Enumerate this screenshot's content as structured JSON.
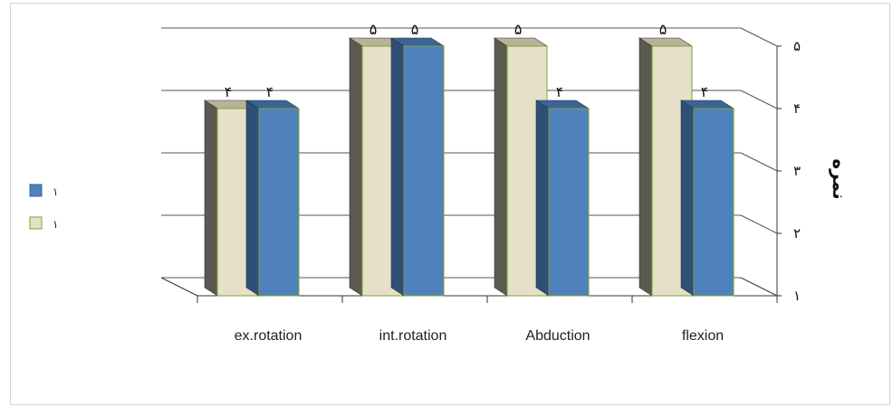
{
  "chart_data": {
    "type": "bar",
    "categories": [
      "ex.rotation",
      "int.rotation",
      "Abduction",
      "flexion"
    ],
    "series": [
      {
        "values": [
          4,
          5,
          5,
          5
        ],
        "color": "#e4e1c8"
      },
      {
        "values": [
          4,
          5,
          4,
          4
        ],
        "color": "#4f81bd"
      }
    ],
    "data_labels": [
      [
        "۴",
        "۵",
        "۵",
        "۵"
      ],
      [
        "۴",
        "۵",
        "۴",
        "۴"
      ]
    ],
    "y_ticks": [
      {
        "value": 1,
        "label": "۱"
      },
      {
        "value": 2,
        "label": "۲"
      },
      {
        "value": 3,
        "label": "۳"
      },
      {
        "value": 4,
        "label": "۴"
      },
      {
        "value": 5,
        "label": "۵"
      }
    ],
    "ylim": [
      1,
      5
    ],
    "ylabel": "نمره",
    "legend_labels": [
      "۱",
      "۱"
    ],
    "legend_position": "left",
    "grid": true
  }
}
